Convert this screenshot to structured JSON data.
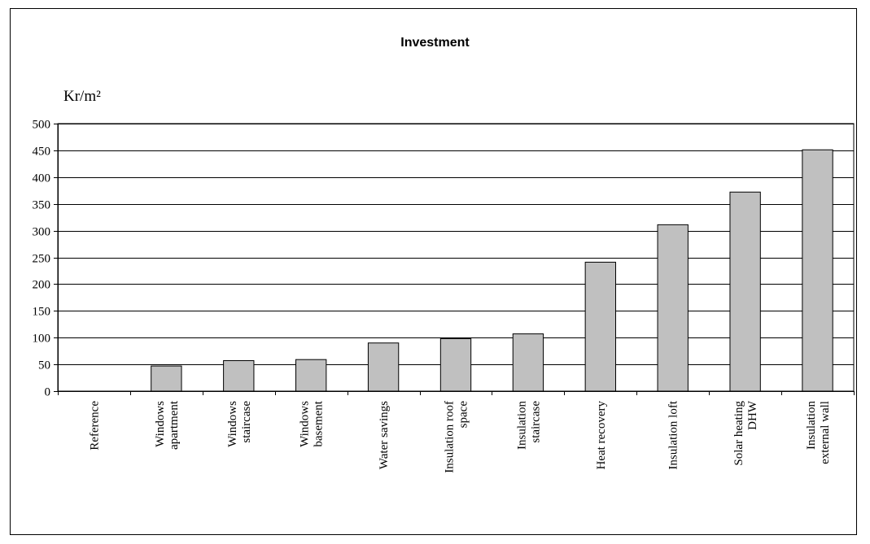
{
  "chart_data": {
    "type": "bar",
    "title": "Investment",
    "ylabel": "Kr/m²",
    "xlabel": "",
    "ylim": [
      0,
      500
    ],
    "yticks": [
      0,
      50,
      100,
      150,
      200,
      250,
      300,
      350,
      400,
      450,
      500
    ],
    "grid": true,
    "legend": "none",
    "bar_color": "#c0c0c0",
    "categories": [
      "Reference",
      "Windows apartment",
      "Windows staircase",
      "Windows basement",
      "Water savings",
      "Insulation roof space",
      "Insulation staircase",
      "Heat recovery",
      "Insulation loft",
      "Solar heating DHW",
      "Insulation external wall"
    ],
    "category_lines": [
      [
        "Reference"
      ],
      [
        "Windows",
        "apartment"
      ],
      [
        "Windows",
        "staircase"
      ],
      [
        "Windows",
        "basement"
      ],
      [
        "Water savings"
      ],
      [
        "Insulation roof",
        "space"
      ],
      [
        "Insulation",
        "staircase"
      ],
      [
        "Heat recovery"
      ],
      [
        "Insulation loft"
      ],
      [
        "Solar heating",
        "DHW"
      ],
      [
        "Insulation",
        "external wall"
      ]
    ],
    "values": [
      0,
      47,
      57,
      59,
      90,
      98,
      107,
      241,
      311,
      372,
      451
    ]
  }
}
